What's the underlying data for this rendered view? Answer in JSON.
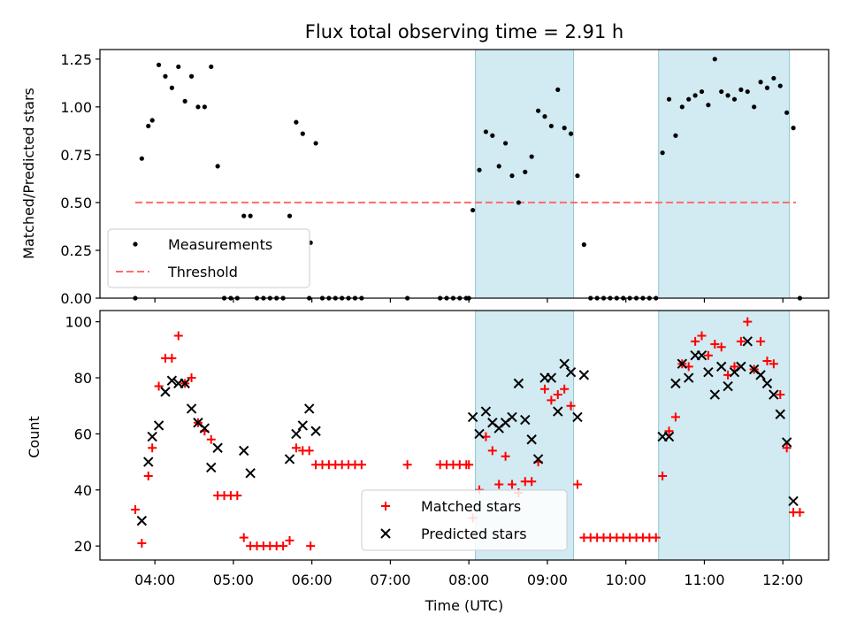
{
  "chart_data": [
    {
      "type": "scatter",
      "title": "Flux total observing time = 2.91 h",
      "xlabel": "",
      "ylabel": "Matched/Predicted stars",
      "ylim": [
        0,
        1.3
      ],
      "xlim": [
        "03:18",
        "12:35"
      ],
      "yticks": [
        0.0,
        0.25,
        0.5,
        0.75,
        1.0,
        1.25
      ],
      "ytick_labels": [
        "0.00",
        "0.25",
        "0.50",
        "0.75",
        "1.00",
        "1.25"
      ],
      "shaded_intervals": [
        [
          "08:05",
          "09:20"
        ],
        [
          "10:25",
          "12:05"
        ]
      ],
      "threshold": {
        "name": "Threshold",
        "value": 0.5,
        "x_range": [
          "03:45",
          "12:10"
        ],
        "color": "#ff6b6b"
      },
      "legend": {
        "placement": "lower-left",
        "entries": [
          "Measurements",
          "Threshold"
        ]
      },
      "series": [
        {
          "name": "Measurements",
          "color": "#000000",
          "points": [
            [
              "03:45",
              0.0
            ],
            [
              "03:50",
              0.73
            ],
            [
              "03:55",
              0.9
            ],
            [
              "03:58",
              0.93
            ],
            [
              "04:03",
              1.22
            ],
            [
              "04:08",
              1.16
            ],
            [
              "04:13",
              1.1
            ],
            [
              "04:18",
              1.21
            ],
            [
              "04:23",
              1.03
            ],
            [
              "04:28",
              1.16
            ],
            [
              "04:33",
              1.0
            ],
            [
              "04:38",
              1.0
            ],
            [
              "04:43",
              1.21
            ],
            [
              "04:48",
              0.69
            ],
            [
              "04:53",
              0.0
            ],
            [
              "04:58",
              0.0
            ],
            [
              "05:03",
              0.0
            ],
            [
              "05:08",
              0.43
            ],
            [
              "05:13",
              0.43
            ],
            [
              "05:18",
              0.0
            ],
            [
              "05:23",
              0.0
            ],
            [
              "05:28",
              0.0
            ],
            [
              "05:33",
              0.0
            ],
            [
              "05:38",
              0.0
            ],
            [
              "05:43",
              0.43
            ],
            [
              "05:48",
              0.92
            ],
            [
              "05:53",
              0.86
            ],
            [
              "05:58",
              0.0
            ],
            [
              "05:59",
              0.29
            ],
            [
              "06:03",
              0.81
            ],
            [
              "06:08",
              0.0
            ],
            [
              "06:13",
              0.0
            ],
            [
              "06:18",
              0.0
            ],
            [
              "06:23",
              0.0
            ],
            [
              "06:28",
              0.0
            ],
            [
              "06:33",
              0.0
            ],
            [
              "06:38",
              0.0
            ],
            [
              "07:13",
              0.0
            ],
            [
              "07:38",
              0.0
            ],
            [
              "07:43",
              0.0
            ],
            [
              "07:48",
              0.0
            ],
            [
              "07:53",
              0.0
            ],
            [
              "07:58",
              0.0
            ],
            [
              "08:00",
              0.0
            ],
            [
              "08:03",
              0.46
            ],
            [
              "08:08",
              0.67
            ],
            [
              "08:13",
              0.87
            ],
            [
              "08:18",
              0.85
            ],
            [
              "08:23",
              0.69
            ],
            [
              "08:28",
              0.81
            ],
            [
              "08:33",
              0.64
            ],
            [
              "08:38",
              0.5
            ],
            [
              "08:43",
              0.66
            ],
            [
              "08:48",
              0.74
            ],
            [
              "08:53",
              0.98
            ],
            [
              "08:58",
              0.95
            ],
            [
              "09:03",
              0.9
            ],
            [
              "09:08",
              1.09
            ],
            [
              "09:13",
              0.89
            ],
            [
              "09:18",
              0.86
            ],
            [
              "09:23",
              0.64
            ],
            [
              "09:28",
              0.28
            ],
            [
              "09:33",
              0.0
            ],
            [
              "09:38",
              0.0
            ],
            [
              "09:43",
              0.0
            ],
            [
              "09:48",
              0.0
            ],
            [
              "09:53",
              0.0
            ],
            [
              "09:58",
              0.0
            ],
            [
              "10:03",
              0.0
            ],
            [
              "10:08",
              0.0
            ],
            [
              "10:13",
              0.0
            ],
            [
              "10:18",
              0.0
            ],
            [
              "10:23",
              0.0
            ],
            [
              "10:28",
              0.76
            ],
            [
              "10:33",
              1.04
            ],
            [
              "10:38",
              0.85
            ],
            [
              "10:43",
              1.0
            ],
            [
              "10:48",
              1.04
            ],
            [
              "10:53",
              1.06
            ],
            [
              "10:58",
              1.08
            ],
            [
              "11:03",
              1.01
            ],
            [
              "11:08",
              1.25
            ],
            [
              "11:13",
              1.08
            ],
            [
              "11:18",
              1.06
            ],
            [
              "11:23",
              1.04
            ],
            [
              "11:28",
              1.09
            ],
            [
              "11:33",
              1.08
            ],
            [
              "11:38",
              1.0
            ],
            [
              "11:43",
              1.13
            ],
            [
              "11:48",
              1.1
            ],
            [
              "11:53",
              1.15
            ],
            [
              "11:58",
              1.11
            ],
            [
              "12:03",
              0.97
            ],
            [
              "12:08",
              0.89
            ],
            [
              "12:13",
              0.0
            ]
          ]
        }
      ]
    },
    {
      "type": "scatter",
      "title": "",
      "xlabel": "Time (UTC)",
      "ylabel": "Count",
      "ylim": [
        15,
        104
      ],
      "xlim": [
        "03:18",
        "12:35"
      ],
      "yticks": [
        20,
        40,
        60,
        80,
        100
      ],
      "ytick_labels": [
        "20",
        "40",
        "60",
        "80",
        "100"
      ],
      "xticks": [
        "04:00",
        "05:00",
        "06:00",
        "07:00",
        "08:00",
        "09:00",
        "10:00",
        "11:00",
        "12:00"
      ],
      "shaded_intervals": [
        [
          "08:05",
          "09:20"
        ],
        [
          "10:25",
          "12:05"
        ]
      ],
      "legend": {
        "placement": "lower-center",
        "entries": [
          "Matched stars",
          "Predicted stars"
        ]
      },
      "series": [
        {
          "name": "Matched stars",
          "marker": "plus",
          "color": "#ff0000",
          "points": [
            [
              "03:45",
              33
            ],
            [
              "03:50",
              21
            ],
            [
              "03:55",
              45
            ],
            [
              "03:58",
              55
            ],
            [
              "04:03",
              77
            ],
            [
              "04:08",
              87
            ],
            [
              "04:13",
              87
            ],
            [
              "04:18",
              95
            ],
            [
              "04:23",
              78
            ],
            [
              "04:28",
              80
            ],
            [
              "04:33",
              64
            ],
            [
              "04:38",
              61
            ],
            [
              "04:43",
              58
            ],
            [
              "04:48",
              38
            ],
            [
              "04:53",
              38
            ],
            [
              "04:58",
              38
            ],
            [
              "05:03",
              38
            ],
            [
              "05:08",
              23
            ],
            [
              "05:13",
              20
            ],
            [
              "05:18",
              20
            ],
            [
              "05:23",
              20
            ],
            [
              "05:28",
              20
            ],
            [
              "05:33",
              20
            ],
            [
              "05:38",
              20
            ],
            [
              "05:43",
              22
            ],
            [
              "05:48",
              55
            ],
            [
              "05:53",
              54
            ],
            [
              "05:58",
              54
            ],
            [
              "05:59",
              20
            ],
            [
              "06:03",
              49
            ],
            [
              "06:08",
              49
            ],
            [
              "06:13",
              49
            ],
            [
              "06:18",
              49
            ],
            [
              "06:23",
              49
            ],
            [
              "06:28",
              49
            ],
            [
              "06:33",
              49
            ],
            [
              "06:38",
              49
            ],
            [
              "07:13",
              49
            ],
            [
              "07:38",
              49
            ],
            [
              "07:43",
              49
            ],
            [
              "07:48",
              49
            ],
            [
              "07:53",
              49
            ],
            [
              "07:58",
              49
            ],
            [
              "08:00",
              49
            ],
            [
              "08:03",
              30
            ],
            [
              "08:08",
              40
            ],
            [
              "08:13",
              59
            ],
            [
              "08:18",
              54
            ],
            [
              "08:23",
              42
            ],
            [
              "08:28",
              52
            ],
            [
              "08:33",
              42
            ],
            [
              "08:38",
              39
            ],
            [
              "08:43",
              43
            ],
            [
              "08:48",
              43
            ],
            [
              "08:53",
              50
            ],
            [
              "08:58",
              76
            ],
            [
              "09:03",
              72
            ],
            [
              "09:08",
              74
            ],
            [
              "09:13",
              76
            ],
            [
              "09:18",
              70
            ],
            [
              "09:23",
              42
            ],
            [
              "09:28",
              23
            ],
            [
              "09:33",
              23
            ],
            [
              "09:38",
              23
            ],
            [
              "09:43",
              23
            ],
            [
              "09:48",
              23
            ],
            [
              "09:53",
              23
            ],
            [
              "09:58",
              23
            ],
            [
              "10:03",
              23
            ],
            [
              "10:08",
              23
            ],
            [
              "10:13",
              23
            ],
            [
              "10:18",
              23
            ],
            [
              "10:23",
              23
            ],
            [
              "10:28",
              45
            ],
            [
              "10:33",
              61
            ],
            [
              "10:38",
              66
            ],
            [
              "10:43",
              85
            ],
            [
              "10:48",
              84
            ],
            [
              "10:53",
              93
            ],
            [
              "10:58",
              95
            ],
            [
              "11:03",
              88
            ],
            [
              "11:08",
              92
            ],
            [
              "11:13",
              91
            ],
            [
              "11:18",
              81
            ],
            [
              "11:23",
              84
            ],
            [
              "11:28",
              93
            ],
            [
              "11:33",
              100
            ],
            [
              "11:38",
              83
            ],
            [
              "11:43",
              93
            ],
            [
              "11:48",
              86
            ],
            [
              "11:53",
              85
            ],
            [
              "11:58",
              74
            ],
            [
              "12:03",
              55
            ],
            [
              "12:08",
              32
            ],
            [
              "12:13",
              32
            ]
          ]
        },
        {
          "name": "Predicted stars",
          "marker": "x",
          "color": "#000000",
          "points": [
            [
              "03:50",
              29
            ],
            [
              "03:55",
              50
            ],
            [
              "03:58",
              59
            ],
            [
              "04:03",
              63
            ],
            [
              "04:08",
              75
            ],
            [
              "04:13",
              79
            ],
            [
              "04:18",
              78
            ],
            [
              "04:23",
              78
            ],
            [
              "04:28",
              69
            ],
            [
              "04:33",
              64
            ],
            [
              "04:38",
              62
            ],
            [
              "04:43",
              48
            ],
            [
              "04:48",
              55
            ],
            [
              "05:08",
              54
            ],
            [
              "05:13",
              46
            ],
            [
              "05:43",
              51
            ],
            [
              "05:48",
              60
            ],
            [
              "05:53",
              63
            ],
            [
              "05:58",
              69
            ],
            [
              "06:03",
              61
            ],
            [
              "08:03",
              66
            ],
            [
              "08:08",
              60
            ],
            [
              "08:13",
              68
            ],
            [
              "08:18",
              64
            ],
            [
              "08:23",
              62
            ],
            [
              "08:28",
              64
            ],
            [
              "08:33",
              66
            ],
            [
              "08:38",
              78
            ],
            [
              "08:43",
              65
            ],
            [
              "08:48",
              58
            ],
            [
              "08:53",
              51
            ],
            [
              "08:58",
              80
            ],
            [
              "09:03",
              80
            ],
            [
              "09:08",
              68
            ],
            [
              "09:13",
              85
            ],
            [
              "09:18",
              82
            ],
            [
              "09:23",
              66
            ],
            [
              "09:28",
              81
            ],
            [
              "10:28",
              59
            ],
            [
              "10:33",
              59
            ],
            [
              "10:38",
              78
            ],
            [
              "10:43",
              85
            ],
            [
              "10:48",
              80
            ],
            [
              "10:53",
              88
            ],
            [
              "10:58",
              88
            ],
            [
              "11:03",
              82
            ],
            [
              "11:08",
              74
            ],
            [
              "11:13",
              84
            ],
            [
              "11:18",
              77
            ],
            [
              "11:23",
              82
            ],
            [
              "11:28",
              84
            ],
            [
              "11:33",
              93
            ],
            [
              "11:38",
              83
            ],
            [
              "11:43",
              81
            ],
            [
              "11:48",
              78
            ],
            [
              "11:53",
              74
            ],
            [
              "11:58",
              67
            ],
            [
              "12:03",
              57
            ],
            [
              "12:08",
              36
            ]
          ]
        }
      ]
    }
  ]
}
